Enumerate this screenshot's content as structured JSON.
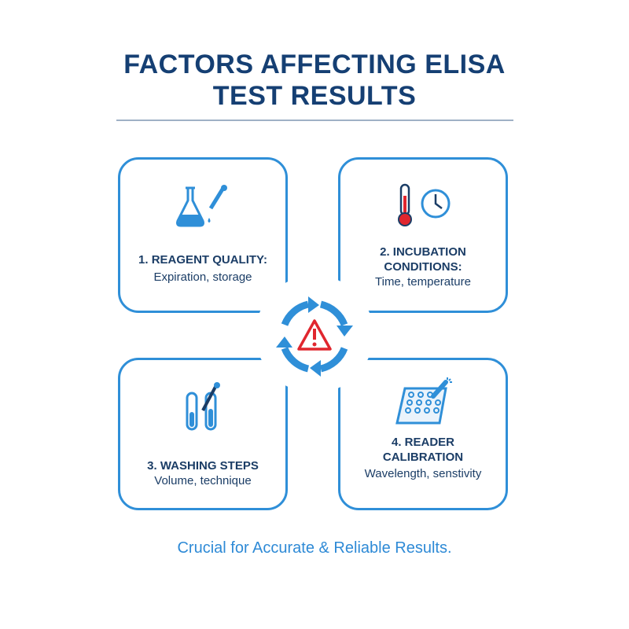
{
  "title_line1": "FACTORS AFFECTING ELISA",
  "title_line2": "TEST RESULTS",
  "factors": [
    {
      "label": "1. REAGENT QUALITY:",
      "detail": "Expiration, storage",
      "icon": "flask-dropper-icon"
    },
    {
      "label_line1": "2. INCUBATION",
      "label_line2": "CONDITIONS:",
      "detail": "Time, temperature",
      "icon": "thermometer-clock-icon"
    },
    {
      "label": "3. WASHING STEPS",
      "detail": "Volume, technique",
      "icon": "test-tubes-pipette-icon"
    },
    {
      "label_line1": "4. READER",
      "label_line2": "CALIBRATION",
      "detail": "Wavelength, senstivity",
      "icon": "microplate-icon"
    }
  ],
  "center_icon": "warning-cycle-icon",
  "footer": "Crucial for Accurate & Reliable Results.",
  "colors": {
    "title": "#153f73",
    "accent": "#2f8fd8",
    "warning": "#e0262e"
  }
}
